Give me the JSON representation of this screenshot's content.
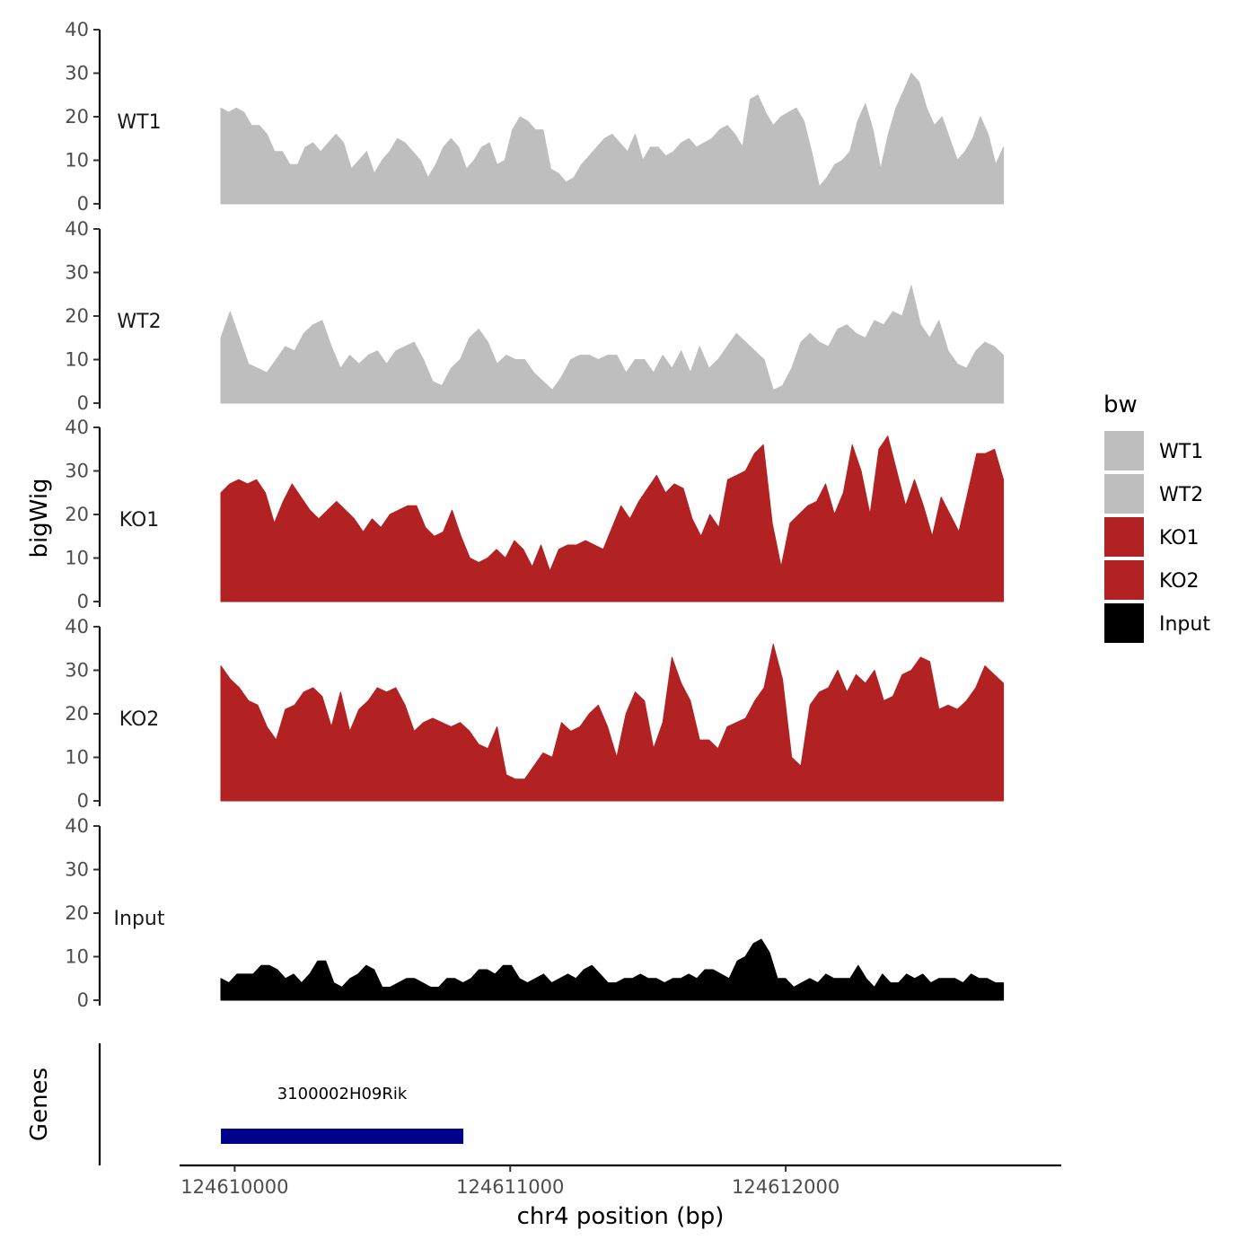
{
  "chart_data": {
    "type": "area",
    "title": "",
    "ylabel": "bigWig",
    "xlabel": "chr4 position (bp)",
    "ylim": [
      0,
      40
    ],
    "yticks": [
      0,
      10,
      20,
      30,
      40
    ],
    "xlim": [
      124609800,
      124613000
    ],
    "xticks": [
      124610000,
      124611000,
      124612000
    ],
    "xtick_labels": [
      "124610000",
      "124611000",
      "124612000"
    ],
    "x_start": 124609950,
    "x_end": 124612790,
    "legend": {
      "title": "bw",
      "position": "right",
      "entries": [
        {
          "label": "WT1",
          "color": "#bebebe"
        },
        {
          "label": "WT2",
          "color": "#bebebe"
        },
        {
          "label": "KO1",
          "color": "#b22222"
        },
        {
          "label": "KO2",
          "color": "#b22222"
        },
        {
          "label": "Input",
          "color": "#000000"
        }
      ]
    },
    "series": [
      {
        "name": "WT1",
        "color": "#bebebe",
        "values": [
          22,
          21,
          22,
          21,
          18,
          18,
          16,
          12,
          12,
          9,
          9,
          13,
          14,
          12,
          14,
          16,
          14,
          8,
          10,
          12,
          7,
          10,
          12,
          15,
          14,
          12,
          10,
          6,
          9,
          13,
          15,
          13,
          8,
          10,
          13,
          14,
          9,
          10,
          17,
          20,
          19,
          17,
          17,
          8,
          7,
          5,
          6,
          9,
          11,
          13,
          15,
          16,
          14,
          12,
          16,
          10,
          13,
          13,
          11,
          12,
          14,
          15,
          13,
          14,
          15,
          17,
          18,
          16,
          13,
          24,
          25,
          21,
          18,
          20,
          21,
          22,
          19,
          12,
          4,
          6,
          9,
          10,
          12,
          19,
          23,
          17,
          8,
          16,
          22,
          26,
          30,
          28,
          22,
          18,
          20,
          15,
          10,
          12,
          15,
          20,
          16,
          9,
          13
        ]
      },
      {
        "name": "WT2",
        "color": "#bebebe",
        "values": [
          15,
          21,
          15,
          9,
          8,
          7,
          10,
          13,
          12,
          16,
          18,
          19,
          13,
          8,
          11,
          9,
          11,
          12,
          9,
          12,
          13,
          14,
          10,
          5,
          4,
          8,
          10,
          15,
          17,
          14,
          9,
          11,
          10,
          10,
          7,
          5,
          3,
          6,
          10,
          11,
          11,
          10,
          11,
          11,
          7,
          10,
          10,
          7,
          11,
          8,
          12,
          7,
          13,
          8,
          10,
          13,
          16,
          14,
          12,
          10,
          3,
          4,
          8,
          14,
          16,
          14,
          13,
          17,
          18,
          16,
          15,
          19,
          18,
          21,
          20,
          27,
          18,
          15,
          19,
          12,
          9,
          8,
          12,
          14,
          13,
          11
        ]
      },
      {
        "name": "KO1",
        "color": "#b22222",
        "values": [
          25,
          27,
          28,
          27,
          28,
          25,
          18,
          23,
          27,
          24,
          21,
          19,
          21,
          23,
          21,
          19,
          16,
          19,
          17,
          20,
          21,
          22,
          22,
          17,
          15,
          16,
          21,
          15,
          10,
          9,
          10,
          12,
          10,
          14,
          12,
          8,
          13,
          7,
          12,
          13,
          13,
          14,
          13,
          12,
          17,
          22,
          19,
          23,
          26,
          29,
          25,
          27,
          26,
          19,
          15,
          20,
          17,
          28,
          29,
          30,
          34,
          36,
          18,
          8,
          18,
          20,
          22,
          23,
          27,
          20,
          25,
          36,
          30,
          20,
          35,
          38,
          30,
          22,
          28,
          22,
          15,
          24,
          20,
          16,
          25,
          34,
          34,
          35,
          28
        ]
      },
      {
        "name": "KO2",
        "color": "#b22222",
        "values": [
          31,
          28,
          26,
          23,
          22,
          17,
          14,
          21,
          22,
          25,
          26,
          24,
          17,
          25,
          16,
          21,
          23,
          26,
          25,
          26,
          22,
          16,
          18,
          19,
          18,
          17,
          18,
          16,
          13,
          12,
          17,
          6,
          5,
          5,
          8,
          11,
          10,
          18,
          16,
          17,
          20,
          22,
          17,
          10,
          20,
          25,
          23,
          12,
          18,
          33,
          27,
          23,
          14,
          14,
          12,
          17,
          18,
          19,
          23,
          26,
          36,
          28,
          10,
          8,
          22,
          25,
          26,
          30,
          25,
          29,
          27,
          30,
          23,
          24,
          29,
          30,
          33,
          32,
          21,
          22,
          21,
          23,
          26,
          31,
          29,
          27
        ]
      },
      {
        "name": "Input",
        "color": "#000000",
        "values": [
          5,
          4,
          6,
          6,
          6,
          8,
          8,
          7,
          5,
          6,
          4,
          6,
          9,
          9,
          4,
          3,
          5,
          6,
          8,
          7,
          3,
          3,
          4,
          5,
          5,
          4,
          3,
          3,
          5,
          5,
          4,
          5,
          7,
          7,
          6,
          8,
          8,
          5,
          4,
          5,
          6,
          4,
          5,
          6,
          5,
          7,
          8,
          6,
          4,
          4,
          5,
          5,
          6,
          5,
          5,
          4,
          5,
          5,
          6,
          5,
          7,
          7,
          6,
          5,
          9,
          10,
          13,
          14,
          11,
          5,
          5,
          3,
          4,
          5,
          4,
          6,
          5,
          5,
          5,
          8,
          5,
          3,
          6,
          4,
          4,
          6,
          5,
          6,
          4,
          5,
          5,
          5,
          4,
          6,
          5,
          5,
          4,
          4
        ]
      }
    ],
    "genes_track": {
      "ylabel": "Genes",
      "genes": [
        {
          "name": "3100002H09Rik",
          "start": 124609950,
          "end": 124610830,
          "color": "#00008b"
        }
      ]
    }
  }
}
